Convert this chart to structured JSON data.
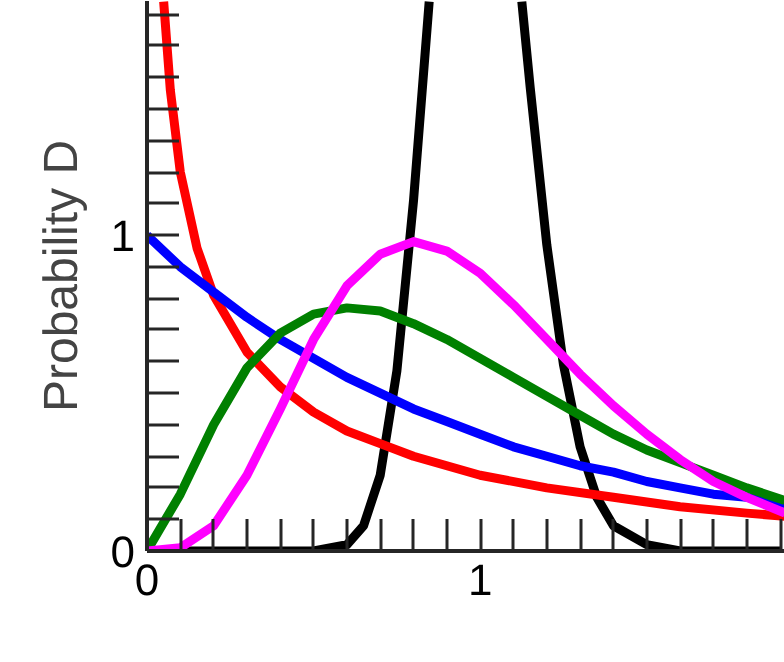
{
  "chart_data": {
    "type": "line",
    "ylabel": "Probability D",
    "xlim": [
      0,
      1.915
    ],
    "ylim": [
      0,
      1.742
    ],
    "xticks": [
      0,
      1,
      {
        "value": 0.1,
        "label": null
      },
      {
        "value": 0.2,
        "label": null
      },
      {
        "value": 0.3,
        "label": null
      },
      {
        "value": 0.4,
        "label": null
      },
      {
        "value": 0.5,
        "label": null
      },
      {
        "value": 0.6,
        "label": null
      },
      {
        "value": 0.7,
        "label": null
      },
      {
        "value": 0.8,
        "label": null
      },
      {
        "value": 0.9,
        "label": null
      },
      {
        "value": 1.1,
        "label": null
      },
      {
        "value": 1.2,
        "label": null
      },
      {
        "value": 1.3,
        "label": null
      },
      {
        "value": 1.4,
        "label": null
      },
      {
        "value": 1.5,
        "label": null
      },
      {
        "value": 1.6,
        "label": null
      },
      {
        "value": 1.7,
        "label": null
      },
      {
        "value": 1.8,
        "label": null
      },
      {
        "value": 1.9,
        "label": null
      }
    ],
    "yticks": [
      0,
      1,
      {
        "value": 0.1,
        "label": null
      },
      {
        "value": 0.2,
        "label": null
      },
      {
        "value": 0.3,
        "label": null
      },
      {
        "value": 0.4,
        "label": null
      },
      {
        "value": 0.5,
        "label": null
      },
      {
        "value": 0.6,
        "label": null
      },
      {
        "value": 0.7,
        "label": null
      },
      {
        "value": 0.8,
        "label": null
      },
      {
        "value": 0.9,
        "label": null
      },
      {
        "value": 1.1,
        "label": null
      },
      {
        "value": 1.2,
        "label": null
      },
      {
        "value": 1.3,
        "label": null
      },
      {
        "value": 1.4,
        "label": null
      },
      {
        "value": 1.5,
        "label": null
      },
      {
        "value": 1.6,
        "label": null
      },
      {
        "value": 1.7,
        "label": null
      }
    ],
    "series": [
      {
        "color": "#000000",
        "x": [
          0,
          0.5,
          0.6,
          0.65,
          0.7,
          0.75,
          0.8,
          0.847,
          1.0,
          1.125,
          1.15,
          1.2,
          1.25,
          1.3,
          1.35,
          1.4,
          1.5,
          1.6,
          1.7,
          1.9
        ],
        "values": [
          0,
          0,
          0.02,
          0.08,
          0.24,
          0.57,
          1.11,
          1.74,
          null,
          1.74,
          1.47,
          0.97,
          0.59,
          0.33,
          0.17,
          0.08,
          0.02,
          0,
          0,
          0
        ]
      },
      {
        "color": "#ff0000",
        "x": [
          0.05,
          0.07,
          0.1,
          0.15,
          0.2,
          0.3,
          0.4,
          0.5,
          0.6,
          0.7,
          0.8,
          0.9,
          1.0,
          1.2,
          1.4,
          1.6,
          1.8,
          1.915
        ],
        "values": [
          1.74,
          1.46,
          1.2,
          0.96,
          0.81,
          0.63,
          0.52,
          0.44,
          0.38,
          0.34,
          0.3,
          0.27,
          0.24,
          0.2,
          0.17,
          0.14,
          0.12,
          0.11
        ]
      },
      {
        "color": "#0000ff",
        "x": [
          0,
          0.1,
          0.2,
          0.3,
          0.4,
          0.5,
          0.6,
          0.7,
          0.8,
          0.9,
          1.0,
          1.1,
          1.2,
          1.3,
          1.4,
          1.5,
          1.6,
          1.7,
          1.8,
          1.915
        ],
        "values": [
          1.0,
          0.9,
          0.82,
          0.74,
          0.67,
          0.61,
          0.55,
          0.5,
          0.45,
          0.41,
          0.37,
          0.33,
          0.3,
          0.27,
          0.25,
          0.22,
          0.2,
          0.18,
          0.17,
          0.15
        ]
      },
      {
        "color": "#008000",
        "x": [
          0,
          0.1,
          0.2,
          0.3,
          0.4,
          0.5,
          0.6,
          0.7,
          0.8,
          0.9,
          1.0,
          1.1,
          1.2,
          1.3,
          1.4,
          1.5,
          1.6,
          1.7,
          1.8,
          1.915
        ],
        "values": [
          0,
          0.18,
          0.4,
          0.58,
          0.69,
          0.75,
          0.77,
          0.76,
          0.72,
          0.67,
          0.61,
          0.55,
          0.49,
          0.43,
          0.37,
          0.32,
          0.28,
          0.24,
          0.2,
          0.16
        ]
      },
      {
        "color": "#ff00ff",
        "x": [
          0,
          0.1,
          0.2,
          0.3,
          0.4,
          0.5,
          0.6,
          0.7,
          0.8,
          0.9,
          1.0,
          1.1,
          1.2,
          1.3,
          1.4,
          1.5,
          1.6,
          1.7,
          1.8,
          1.915
        ],
        "values": [
          0,
          0.01,
          0.08,
          0.24,
          0.45,
          0.67,
          0.84,
          0.94,
          0.98,
          0.95,
          0.88,
          0.78,
          0.67,
          0.56,
          0.46,
          0.37,
          0.29,
          0.22,
          0.17,
          0.12
        ]
      }
    ]
  }
}
